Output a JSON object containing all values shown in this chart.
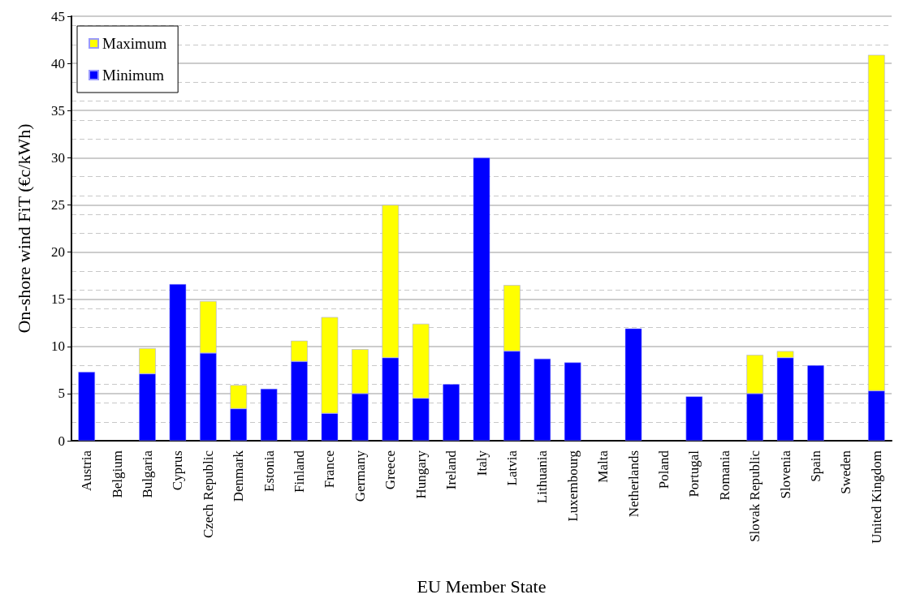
{
  "chart_data": {
    "type": "bar",
    "stacked": true,
    "xlabel": "EU Member State",
    "ylabel": "On-shore wind FiT (€c/kWh)",
    "categories": [
      "Austria",
      "Belgium",
      "Bulgaria",
      "Cyprus",
      "Czech Republic",
      "Denmark",
      "Estonia",
      "Finland",
      "France",
      "Germany",
      "Greece",
      "Hungary",
      "Ireland",
      "Italy",
      "Latvia",
      "Lithuania",
      "Luxembourg",
      "Malta",
      "Netherlands",
      "Poland",
      "Portugal",
      "Romania",
      "Slovak Republic",
      "Slovenia",
      "Spain",
      "Sweden",
      "United Kingdom"
    ],
    "series": [
      {
        "name": "Minimum",
        "color": "#0000ff",
        "values": [
          7.3,
          null,
          7.1,
          16.6,
          9.3,
          3.4,
          5.5,
          8.4,
          2.9,
          5.0,
          8.8,
          4.5,
          6.0,
          30.0,
          9.5,
          8.7,
          8.3,
          null,
          11.9,
          null,
          4.7,
          null,
          5.0,
          8.8,
          8.0,
          null,
          5.3
        ]
      },
      {
        "name": "Maximum",
        "color": "#ffff00",
        "values": [
          null,
          null,
          2.7,
          null,
          5.5,
          2.5,
          null,
          2.2,
          10.2,
          4.7,
          16.2,
          7.9,
          null,
          null,
          7.0,
          null,
          null,
          null,
          null,
          null,
          null,
          null,
          4.1,
          0.7,
          null,
          null,
          35.6
        ]
      }
    ],
    "ylim": [
      0,
      45
    ],
    "yticks": [
      0,
      5,
      10,
      15,
      20,
      25,
      30,
      35,
      40,
      45
    ],
    "grid": "y",
    "legend": "top left"
  }
}
